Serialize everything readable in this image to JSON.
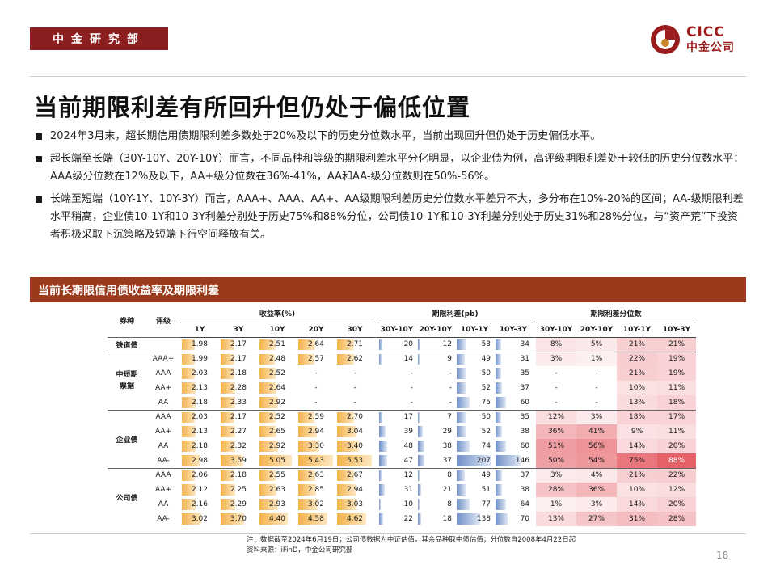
{
  "header": {
    "dept": "中金研究部",
    "logo_en": "CICC",
    "logo_cn": "中金公司",
    "brand_color": "#9b1c1c"
  },
  "title": "当前期限利差有所回升但仍处于偏低位置",
  "bullets": [
    "2024年3月末，超长期信用债期限利差多数处于20%及以下的历史分位数水平，当前出现回升但仍处于历史偏低水平。",
    "超长端至长端（30Y-10Y、20Y-10Y）而言，不同品种和等级的期限利差水平分化明显，以企业债为例，高评级期限利差处于较低的历史分位数水平：AAA级分位数在12%及以下，AA+级分位数在36%-41%，AA和AA-级分位数则在50%-56%。",
    "长端至短端（10Y-1Y、10Y-3Y）而言，AAA+、AAA、AA+、AA级期限利差历史分位数水平差异不大，多分布在10%-20%的区间；AA-级期限利差水平稍高，企业债10-1Y和10-3Y利差分别处于历史75%和88%分位，公司债10-1Y和10-3Y利差分别处于历史31%和28%分位，与“资产荒”下投资者积极采取下沉策略及短端下行空间释放有关。"
  ],
  "banner": "当前长期限信用债收益率及期限利差",
  "table": {
    "col_type": "券种",
    "col_grade": "评级",
    "group_rate": "收益率(%)",
    "group_spread": "期限利差(pb)",
    "group_pct": "期限利差分位数",
    "rate_cols": [
      "1Y",
      "3Y",
      "10Y",
      "20Y",
      "30Y"
    ],
    "spread_cols": [
      "30Y-10Y",
      "20Y-10Y",
      "10Y-1Y",
      "10Y-3Y"
    ],
    "pct_cols": [
      "30Y-10Y",
      "20Y-10Y",
      "10Y-1Y",
      "10Y-3Y"
    ],
    "sections": [
      {
        "name": "铁道债",
        "rows": [
          {
            "grade": "",
            "rates": [
              "1.98",
              "2.17",
              "2.51",
              "2.64",
              "2.71"
            ],
            "spreads": [
              "20",
              "12",
              "53",
              "34"
            ],
            "pcts": [
              "8%",
              "5%",
              "21%",
              "21%"
            ]
          }
        ]
      },
      {
        "name": "中短期票据",
        "rows": [
          {
            "grade": "AAA+",
            "rates": [
              "1.99",
              "2.17",
              "2.48",
              "2.57",
              "2.62"
            ],
            "spreads": [
              "14",
              "9",
              "49",
              "31"
            ],
            "pcts": [
              "3%",
              "1%",
              "22%",
              "19%"
            ]
          },
          {
            "grade": "AAA",
            "rates": [
              "2.03",
              "2.18",
              "2.52",
              "-",
              "-"
            ],
            "spreads": [
              "-",
              "-",
              "50",
              "35"
            ],
            "pcts": [
              "-",
              "-",
              "21%",
              "19%"
            ]
          },
          {
            "grade": "AA+",
            "rates": [
              "2.13",
              "2.28",
              "2.64",
              "-",
              "-"
            ],
            "spreads": [
              "-",
              "-",
              "52",
              "37"
            ],
            "pcts": [
              "-",
              "-",
              "10%",
              "11%"
            ]
          },
          {
            "grade": "AA",
            "rates": [
              "2.18",
              "2.33",
              "2.92",
              "-",
              "-"
            ],
            "spreads": [
              "-",
              "-",
              "75",
              "60"
            ],
            "pcts": [
              "-",
              "-",
              "13%",
              "18%"
            ]
          }
        ]
      },
      {
        "name": "企业债",
        "rows": [
          {
            "grade": "AAA",
            "rates": [
              "2.03",
              "2.17",
              "2.52",
              "2.59",
              "2.70"
            ],
            "spreads": [
              "17",
              "7",
              "50",
              "35"
            ],
            "pcts": [
              "12%",
              "3%",
              "18%",
              "17%"
            ]
          },
          {
            "grade": "AA+",
            "rates": [
              "2.13",
              "2.27",
              "2.65",
              "2.94",
              "3.04"
            ],
            "spreads": [
              "39",
              "29",
              "52",
              "38"
            ],
            "pcts": [
              "36%",
              "41%",
              "9%",
              "11%"
            ]
          },
          {
            "grade": "AA",
            "rates": [
              "2.18",
              "2.32",
              "2.92",
              "3.30",
              "3.40"
            ],
            "spreads": [
              "48",
              "38",
              "74",
              "60"
            ],
            "pcts": [
              "51%",
              "56%",
              "14%",
              "20%"
            ]
          },
          {
            "grade": "AA-",
            "rates": [
              "2.98",
              "3.59",
              "5.05",
              "5.43",
              "5.53"
            ],
            "spreads": [
              "47",
              "37",
              "207",
              "146"
            ],
            "pcts": [
              "50%",
              "54%",
              "75%",
              "88%"
            ]
          }
        ]
      },
      {
        "name": "公司债",
        "rows": [
          {
            "grade": "AAA",
            "rates": [
              "2.06",
              "2.18",
              "2.55",
              "2.63",
              "2.67"
            ],
            "spreads": [
              "12",
              "8",
              "49",
              "37"
            ],
            "pcts": [
              "3%",
              "4%",
              "21%",
              "22%"
            ]
          },
          {
            "grade": "AA+",
            "rates": [
              "2.12",
              "2.25",
              "2.63",
              "2.85",
              "2.94"
            ],
            "spreads": [
              "31",
              "21",
              "51",
              "38"
            ],
            "pcts": [
              "28%",
              "36%",
              "10%",
              "12%"
            ]
          },
          {
            "grade": "AA",
            "rates": [
              "2.16",
              "2.29",
              "2.93",
              "3.02",
              "3.03"
            ],
            "spreads": [
              "10",
              "8",
              "77",
              "64"
            ],
            "pcts": [
              "1%",
              "3%",
              "14%",
              "20%"
            ]
          },
          {
            "grade": "AA-",
            "rates": [
              "3.02",
              "3.70",
              "4.40",
              "4.58",
              "4.62"
            ],
            "spreads": [
              "22",
              "18",
              "138",
              "70"
            ],
            "pcts": [
              "13%",
              "27%",
              "31%",
              "28%"
            ]
          }
        ]
      }
    ],
    "colors": {
      "rate_bar": "#f3b24a",
      "spread_bar": "#6f8fc8",
      "pct_heat": "#e24d55"
    }
  },
  "notes": [
    "注：数据截至2024年6月19日；公司债数据为中证估值，其余品种取中债估值；分位数自2008年4月22日起",
    "资料来源：iFinD，中金公司研究部"
  ],
  "page_number": "18"
}
